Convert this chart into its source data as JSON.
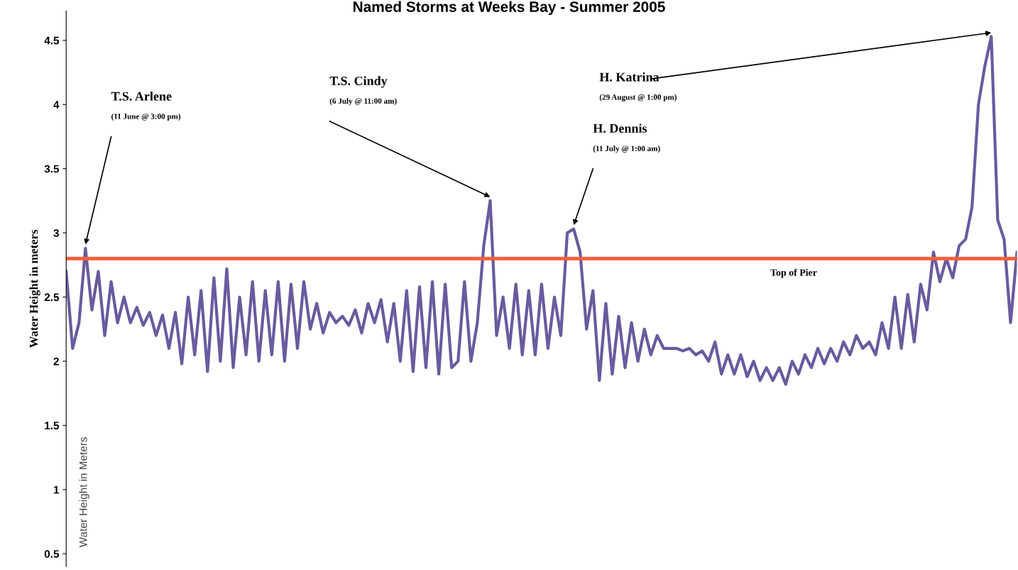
{
  "chart_data": {
    "type": "line",
    "title": "Named Storms at Weeks Bay - Summer 2005",
    "ylabel": "Water Height in meters",
    "categories": [
      null,
      null,
      null,
      null,
      null,
      null,
      null,
      null,
      null,
      null,
      null,
      null,
      null,
      null,
      null,
      null,
      null,
      null,
      null,
      null,
      null,
      null,
      null,
      null,
      null,
      null,
      null,
      null,
      null,
      null,
      null,
      null,
      null,
      null,
      null,
      null,
      null,
      null,
      null,
      null,
      null,
      null,
      null,
      null,
      null,
      null,
      null,
      null,
      null,
      null,
      null,
      null,
      null,
      null,
      null,
      null,
      null,
      null,
      null,
      null,
      null,
      null,
      null,
      null,
      null,
      null,
      null,
      null,
      null,
      null,
      null,
      null,
      null,
      null,
      null,
      null,
      null,
      null,
      null,
      null,
      null,
      null,
      null,
      null,
      null,
      null,
      null,
      null,
      null,
      null,
      null,
      null,
      null,
      null,
      null,
      null,
      null,
      null,
      null,
      null,
      null,
      null,
      null,
      null,
      null,
      null,
      null,
      null,
      null,
      null,
      null,
      null,
      null,
      null,
      null,
      null,
      null,
      null,
      null,
      null,
      null,
      null,
      null,
      null,
      null,
      null,
      null,
      null,
      null,
      null,
      null,
      null,
      null,
      null,
      null,
      null,
      null,
      null,
      null,
      null,
      null,
      null,
      null,
      null,
      null,
      null,
      null,
      null,
      null
    ],
    "series": [
      {
        "color": "#6a5a9e",
        "values": [
          2.7,
          2.1,
          2.3,
          2.88,
          2.4,
          2.7,
          2.2,
          2.62,
          2.3,
          2.5,
          2.3,
          2.42,
          2.28,
          2.38,
          2.2,
          2.36,
          2.1,
          2.38,
          1.98,
          2.5,
          2.05,
          2.55,
          1.92,
          2.65,
          2.0,
          2.72,
          1.95,
          2.5,
          2.05,
          2.62,
          2.0,
          2.55,
          2.05,
          2.62,
          2.0,
          2.6,
          2.1,
          2.62,
          2.25,
          2.45,
          2.22,
          2.38,
          2.3,
          2.35,
          2.28,
          2.4,
          2.22,
          2.45,
          2.3,
          2.48,
          2.15,
          2.45,
          2.0,
          2.55,
          1.92,
          2.58,
          1.95,
          2.62,
          1.9,
          2.6,
          1.95,
          2.0,
          2.62,
          2.0,
          2.3,
          2.9,
          3.25,
          2.2,
          2.5,
          2.1,
          2.6,
          2.05,
          2.55,
          2.05,
          2.6,
          2.1,
          2.5,
          2.2,
          3.0,
          3.03,
          2.85,
          2.25,
          2.55,
          1.85,
          2.45,
          1.9,
          2.35,
          1.95,
          2.3,
          2.0,
          2.25,
          2.05,
          2.2,
          2.1,
          2.1,
          2.1,
          2.08,
          2.1,
          2.05,
          2.08,
          2.0,
          2.15,
          1.9,
          2.05,
          1.9,
          2.05,
          1.88,
          2.0,
          1.85,
          1.95,
          1.85,
          1.95,
          1.82,
          2.0,
          1.9,
          2.05,
          1.95,
          2.1,
          1.98,
          2.1,
          2.0,
          2.15,
          2.05,
          2.2,
          2.1,
          2.15,
          2.05,
          2.3,
          2.1,
          2.5,
          2.1,
          2.52,
          2.15,
          2.6,
          2.4,
          2.85,
          2.62,
          2.8,
          2.65,
          2.9,
          2.95,
          3.2,
          4.0,
          4.3,
          4.53,
          3.1,
          2.95,
          2.3,
          2.85
        ]
      }
    ],
    "ylim": [
      0.4,
      4.73
    ],
    "yticks": [
      {
        "value": 0.5,
        "label": "0.5"
      },
      1,
      {
        "value": 1.5,
        "label": "1.5"
      },
      2,
      {
        "value": 2.5,
        "label": "2.5"
      },
      3,
      {
        "value": 3.5,
        "label": "3.5"
      },
      4,
      {
        "value": 4.5,
        "label": "4.5"
      }
    ],
    "tick_labels": "y",
    "grid": false,
    "ref_lines": [
      {
        "axis": "y",
        "value": 2.8,
        "label": "Top of Pier",
        "color": "#f4603a"
      }
    ],
    "annotations": [
      "T.S. Arlene\n(11 June @ 3:00 pm)",
      "T.S. Cindy\n(6 July @ 11:00 am)",
      "H. Dennis\n(11 July @ 1:00 am)",
      "H. Katrina\n(29 August @ 1:00 pm)",
      "Water Height in Meters"
    ]
  }
}
